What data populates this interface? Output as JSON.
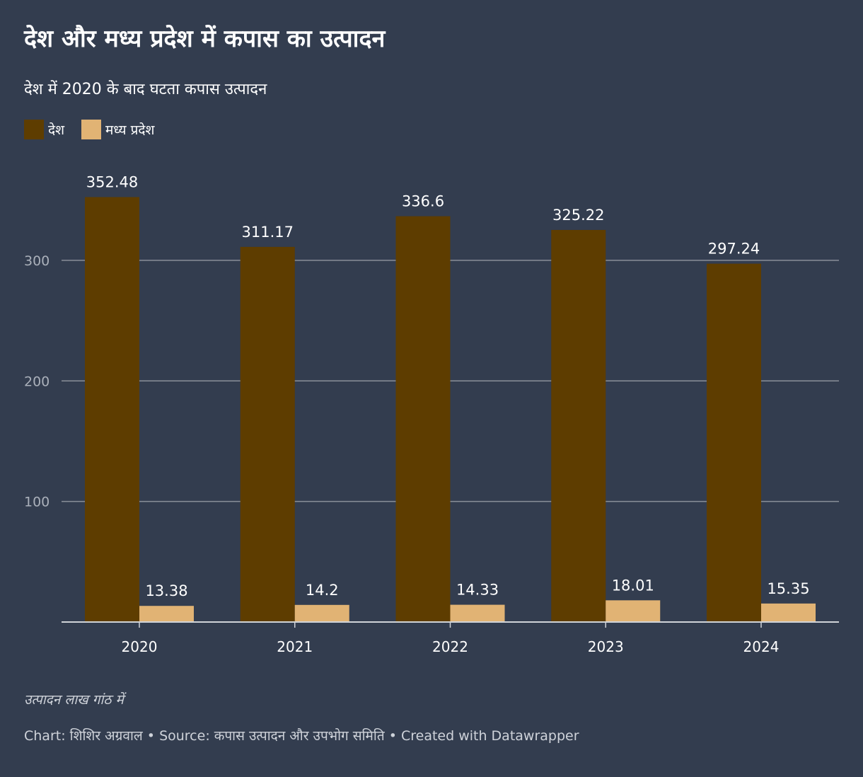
{
  "title": "देश और मध्य प्रदेश में कपास का उत्पादन",
  "subtitle": "देश में 2020 के बाद घटता कपास उत्पादन",
  "note": "उत्पादन लाख गांठ में",
  "footer": {
    "chart_label": "Chart: शिशिर अग्रवाल",
    "separator": "•",
    "source_label": "Source: कपास उत्पादन और उपभोग समिति",
    "credit": "Created with Datawrapper"
  },
  "colors": {
    "background": "#333d4f",
    "series_desh": "#5e3d00",
    "series_mp": "#e1b374",
    "grid": "#8a8f99"
  },
  "chart_data": {
    "type": "bar",
    "categories": [
      "2020",
      "2021",
      "2022",
      "2023",
      "2024"
    ],
    "series": [
      {
        "name": "देश",
        "values": [
          352.48,
          311.17,
          336.6,
          325.22,
          297.24
        ],
        "labels": [
          "352.48",
          "311.17",
          "336.6",
          "325.22",
          "297.24"
        ]
      },
      {
        "name": "मध्य प्रदेश",
        "values": [
          13.38,
          14.2,
          14.33,
          18.01,
          15.35
        ],
        "labels": [
          "13.38",
          "14.2",
          "14.33",
          "18.01",
          "15.35"
        ]
      }
    ],
    "yticks": [
      100,
      200,
      300
    ],
    "ylim": [
      0,
      352.48
    ],
    "grid": true,
    "legend": "top-left"
  }
}
